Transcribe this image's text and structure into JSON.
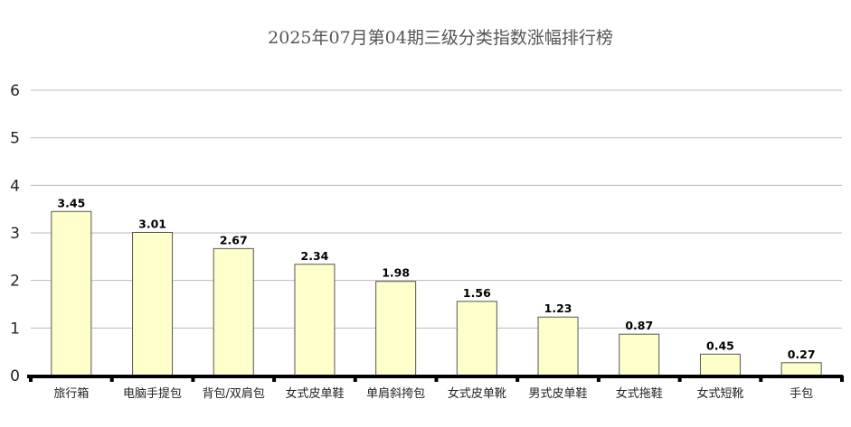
{
  "chart_data": {
    "type": "bar",
    "title": "2025年07月第04期三级分类指数涨幅排行榜",
    "categories": [
      "旅行箱",
      "电脑手提包",
      "背包/双肩包",
      "女式皮单鞋",
      "单肩斜挎包",
      "女式皮单靴",
      "男式皮单鞋",
      "女式拖鞋",
      "女式短靴",
      "手包"
    ],
    "values": [
      3.45,
      3.01,
      2.67,
      2.34,
      1.98,
      1.56,
      1.23,
      0.87,
      0.45,
      0.27
    ],
    "value_labels": [
      "3.45",
      "3.01",
      "2.67",
      "2.34",
      "1.98",
      "1.56",
      "1.23",
      "0.87",
      "0.45",
      "0.27"
    ],
    "yticks": [
      "0",
      "1",
      "2",
      "3",
      "4",
      "5",
      "6"
    ],
    "ylim": [
      0,
      6
    ],
    "xlabel": "",
    "ylabel": "",
    "grid": true,
    "legend": "none",
    "colors": {
      "bar_fill": "#ffffcc",
      "bar_stroke": "#555555",
      "grid": "#bbbbbb",
      "axis": "#000000"
    }
  }
}
